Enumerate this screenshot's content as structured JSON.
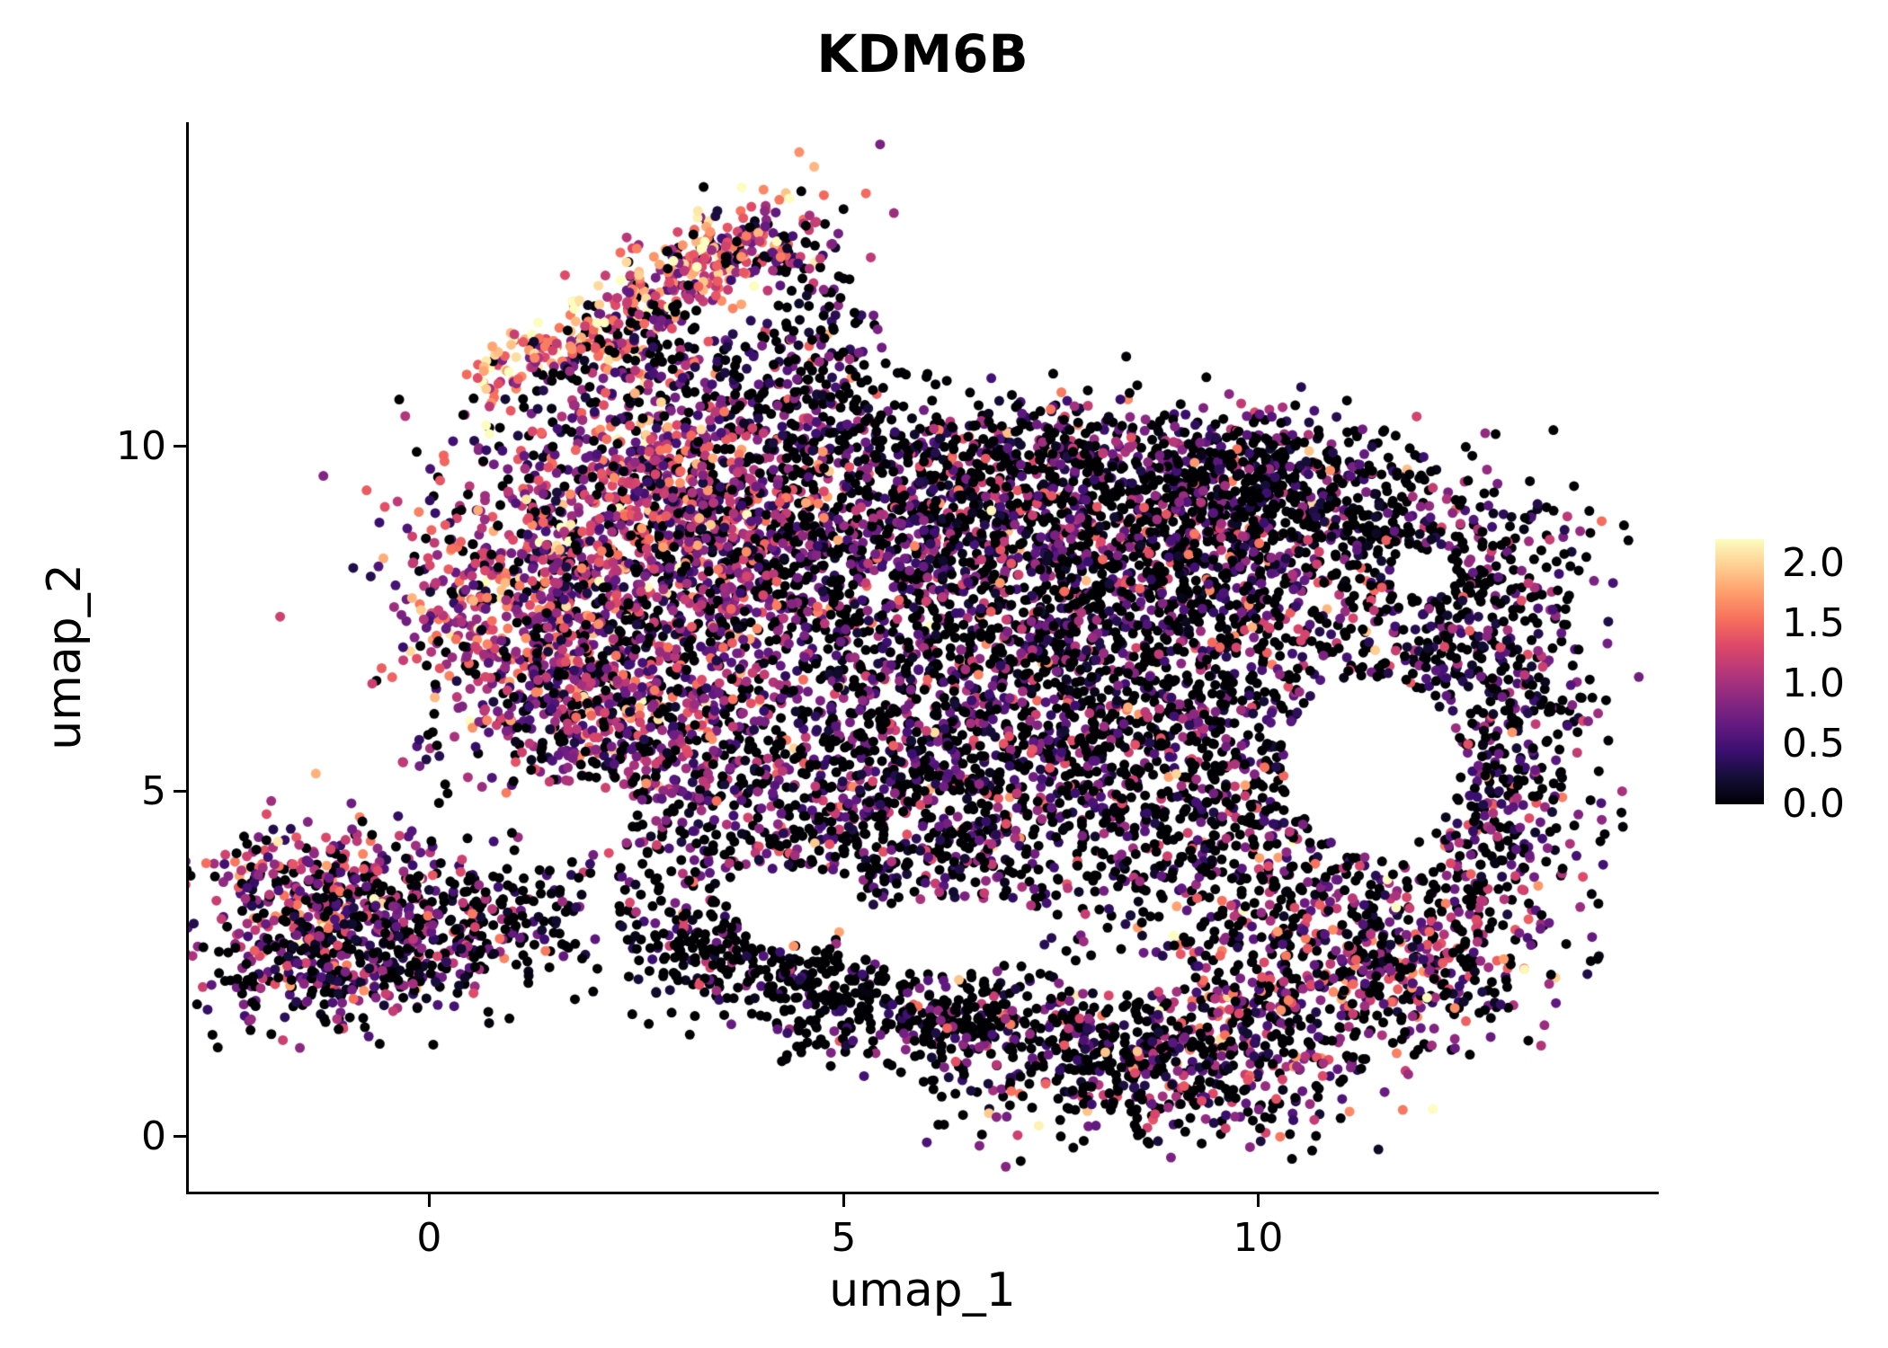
{
  "chart_data": {
    "type": "scatter",
    "title": "KDM6B",
    "xlabel": "umap_1",
    "ylabel": "umap_2",
    "xlim": [
      -2.9,
      14.8
    ],
    "ylim": [
      -0.8,
      14.7
    ],
    "grid": false,
    "background": "#FFFFFF",
    "x_ticks": [
      0,
      5,
      10
    ],
    "x_tick_labels": [
      "0",
      "5",
      "10"
    ],
    "y_ticks": [
      0,
      5,
      10
    ],
    "y_tick_labels": [
      "0",
      "5",
      "10"
    ],
    "legend_position": "right",
    "colorbar": {
      "vmin": 0.0,
      "vmax": 2.2,
      "ticks": [
        0.0,
        0.5,
        1.0,
        1.5,
        2.0
      ],
      "tick_labels": [
        "0.0",
        "0.5",
        "1.0",
        "1.5",
        "2.0"
      ]
    },
    "colormap": [
      "#000004",
      "#140E36",
      "#3B0F70",
      "#641A80",
      "#8C2981",
      "#B73779",
      "#DE4968",
      "#F7705C",
      "#FE9F6D",
      "#FECF92",
      "#FCFDBF"
    ],
    "point_radius": 5.5,
    "seed": 20240613,
    "clusters": [
      {
        "name": "top-arm-main",
        "cx": 3.0,
        "cy": 12.5,
        "sx": 0.85,
        "sy": 0.32,
        "rot": 38,
        "n": 260,
        "p0": 0.1,
        "mu": 1.35,
        "sd": 0.55
      },
      {
        "name": "top-arm-right",
        "cx": 4.15,
        "cy": 12.85,
        "sx": 0.45,
        "sy": 0.22,
        "rot": 15,
        "n": 110,
        "p0": 0.3,
        "mu": 1.1,
        "sd": 0.6
      },
      {
        "name": "top-arm-spur",
        "cx": 1.35,
        "cy": 11.35,
        "sx": 0.5,
        "sy": 0.18,
        "rot": 28,
        "n": 90,
        "p0": 0.06,
        "mu": 1.7,
        "sd": 0.45
      },
      {
        "name": "top-arm-mid",
        "cx": 2.4,
        "cy": 11.4,
        "sx": 0.6,
        "sy": 0.4,
        "rot": 30,
        "n": 140,
        "p0": 0.35,
        "mu": 0.9,
        "sd": 0.6
      },
      {
        "name": "arm-transition",
        "cx": 3.6,
        "cy": 10.9,
        "sx": 0.7,
        "sy": 0.5,
        "rot": 0,
        "n": 130,
        "p0": 0.45,
        "mu": 0.7,
        "sd": 0.5
      },
      {
        "name": "arm-right-sparse",
        "cx": 4.6,
        "cy": 11.9,
        "sx": 0.45,
        "sy": 0.45,
        "rot": 0,
        "n": 70,
        "p0": 0.5,
        "mu": 0.6,
        "sd": 0.5
      },
      {
        "name": "upper-left-1",
        "cx": 2.5,
        "cy": 9.4,
        "sx": 1.05,
        "sy": 0.75,
        "rot": -10,
        "n": 620,
        "p0": 0.18,
        "mu": 0.95,
        "sd": 0.5
      },
      {
        "name": "upper-left-2",
        "cx": 1.15,
        "cy": 7.6,
        "sx": 0.75,
        "sy": 0.95,
        "rot": 0,
        "n": 520,
        "p0": 0.15,
        "mu": 1.05,
        "sd": 0.55
      },
      {
        "name": "upper-left-3",
        "cx": 2.7,
        "cy": 7.2,
        "sx": 1.0,
        "sy": 0.85,
        "rot": 0,
        "n": 480,
        "p0": 0.22,
        "mu": 0.9,
        "sd": 0.5
      },
      {
        "name": "upper-left-4",
        "cx": 2.1,
        "cy": 5.9,
        "sx": 0.95,
        "sy": 0.65,
        "rot": 0,
        "n": 360,
        "p0": 0.28,
        "mu": 0.85,
        "sd": 0.5
      },
      {
        "name": "upper-left-5",
        "cx": 3.9,
        "cy": 8.6,
        "sx": 0.8,
        "sy": 0.9,
        "rot": 0,
        "n": 350,
        "p0": 0.35,
        "mu": 0.8,
        "sd": 0.5
      },
      {
        "name": "center-1",
        "cx": 5.4,
        "cy": 9.0,
        "sx": 1.2,
        "sy": 0.8,
        "rot": 0,
        "n": 520,
        "p0": 0.45,
        "mu": 0.7,
        "sd": 0.5
      },
      {
        "name": "center-2",
        "cx": 7.4,
        "cy": 9.2,
        "sx": 1.4,
        "sy": 0.7,
        "rot": 0,
        "n": 520,
        "p0": 0.5,
        "mu": 0.7,
        "sd": 0.5
      },
      {
        "name": "center-3",
        "cx": 5.9,
        "cy": 6.6,
        "sx": 1.5,
        "sy": 1.15,
        "rot": 0,
        "n": 780,
        "p0": 0.5,
        "mu": 0.7,
        "sd": 0.5
      },
      {
        "name": "center-4",
        "cx": 8.2,
        "cy": 7.2,
        "sx": 1.4,
        "sy": 1.2,
        "rot": 0,
        "n": 800,
        "p0": 0.55,
        "mu": 0.65,
        "sd": 0.5
      },
      {
        "name": "center-5",
        "cx": 7.0,
        "cy": 4.8,
        "sx": 1.7,
        "sy": 0.9,
        "rot": 0,
        "n": 620,
        "p0": 0.55,
        "mu": 0.65,
        "sd": 0.5
      },
      {
        "name": "center-6",
        "cx": 4.9,
        "cy": 4.3,
        "sx": 1.1,
        "sy": 0.8,
        "rot": 0,
        "n": 330,
        "p0": 0.5,
        "mu": 0.7,
        "sd": 0.5
      },
      {
        "name": "center-7",
        "cx": 9.6,
        "cy": 5.3,
        "sx": 1.1,
        "sy": 1.2,
        "rot": 0,
        "n": 460,
        "p0": 0.6,
        "mu": 0.6,
        "sd": 0.5
      },
      {
        "name": "center-8",
        "cx": 9.3,
        "cy": 8.6,
        "sx": 1.0,
        "sy": 0.8,
        "rot": 0,
        "n": 380,
        "p0": 0.55,
        "mu": 0.65,
        "sd": 0.5
      },
      {
        "name": "right-lobe-top",
        "cx": 11.1,
        "cy": 8.8,
        "sx": 1.3,
        "sy": 0.65,
        "rot": -8,
        "n": 420,
        "p0": 0.55,
        "mu": 0.6,
        "sd": 0.5
      },
      {
        "name": "right-lobe-edge",
        "cx": 12.4,
        "cy": 7.2,
        "sx": 0.75,
        "sy": 1.1,
        "rot": -20,
        "n": 380,
        "p0": 0.5,
        "mu": 0.7,
        "sd": 0.5
      },
      {
        "name": "right-lobe-lower",
        "cx": 12.8,
        "cy": 4.8,
        "sx": 0.6,
        "sy": 1.0,
        "rot": 10,
        "n": 260,
        "p0": 0.5,
        "mu": 0.7,
        "sd": 0.5
      },
      {
        "name": "right-lobe-bottom",
        "cx": 10.7,
        "cy": 3.2,
        "sx": 1.1,
        "sy": 0.8,
        "rot": 0,
        "n": 380,
        "p0": 0.45,
        "mu": 0.85,
        "sd": 0.55
      },
      {
        "name": "right-bottom-pink",
        "cx": 12.0,
        "cy": 2.4,
        "sx": 0.9,
        "sy": 0.6,
        "rot": 20,
        "n": 260,
        "p0": 0.4,
        "mu": 0.95,
        "sd": 0.55
      },
      {
        "name": "right-top-edge",
        "cx": 10.3,
        "cy": 9.6,
        "sx": 0.9,
        "sy": 0.4,
        "rot": -5,
        "n": 170,
        "p0": 0.55,
        "mu": 0.6,
        "sd": 0.5
      },
      {
        "name": "far-right-edge",
        "cx": 13.3,
        "cy": 6.3,
        "sx": 0.35,
        "sy": 0.9,
        "rot": 0,
        "n": 80,
        "p0": 0.5,
        "mu": 0.7,
        "sd": 0.5
      },
      {
        "name": "bottom-band-1",
        "cx": 4.4,
        "cy": 2.3,
        "sx": 1.1,
        "sy": 0.4,
        "rot": -12,
        "n": 240,
        "p0": 0.75,
        "mu": 0.5,
        "sd": 0.45
      },
      {
        "name": "bottom-band-2",
        "cx": 6.4,
        "cy": 1.7,
        "sx": 1.3,
        "sy": 0.45,
        "rot": -8,
        "n": 320,
        "p0": 0.7,
        "mu": 0.55,
        "sd": 0.5
      },
      {
        "name": "bottom-band-3",
        "cx": 8.4,
        "cy": 1.0,
        "sx": 1.2,
        "sy": 0.55,
        "rot": -5,
        "n": 420,
        "p0": 0.55,
        "mu": 0.8,
        "sd": 0.55
      },
      {
        "name": "bottom-band-4",
        "cx": 9.9,
        "cy": 1.6,
        "sx": 0.9,
        "sy": 0.7,
        "rot": 15,
        "n": 320,
        "p0": 0.5,
        "mu": 0.9,
        "sd": 0.55
      },
      {
        "name": "bottom-band-5",
        "cx": 3.3,
        "cy": 3.0,
        "sx": 0.7,
        "sy": 0.5,
        "rot": -20,
        "n": 120,
        "p0": 0.7,
        "mu": 0.5,
        "sd": 0.45
      },
      {
        "name": "bottom-left-1",
        "cx": -1.3,
        "cy": 3.6,
        "sx": 0.75,
        "sy": 0.5,
        "rot": 0,
        "n": 320,
        "p0": 0.25,
        "mu": 0.95,
        "sd": 0.55
      },
      {
        "name": "bottom-left-2",
        "cx": -1.25,
        "cy": 2.5,
        "sx": 0.75,
        "sy": 0.45,
        "rot": 0,
        "n": 300,
        "p0": 0.38,
        "mu": 0.75,
        "sd": 0.5
      },
      {
        "name": "bottom-left-3",
        "cx": 0.05,
        "cy": 2.9,
        "sx": 0.6,
        "sy": 0.6,
        "rot": 0,
        "n": 210,
        "p0": 0.45,
        "mu": 0.7,
        "sd": 0.5
      },
      {
        "name": "bottom-left-tail",
        "cx": 1.1,
        "cy": 3.3,
        "sx": 0.55,
        "sy": 0.45,
        "rot": 0,
        "n": 90,
        "p0": 0.6,
        "mu": 0.55,
        "sd": 0.5
      },
      {
        "name": "mid-left-sparse",
        "cx": 2.9,
        "cy": 4.8,
        "sx": 0.8,
        "sy": 0.6,
        "rot": 0,
        "n": 130,
        "p0": 0.5,
        "mu": 0.7,
        "sd": 0.5
      },
      {
        "name": "top-edge-1",
        "cx": 6.4,
        "cy": 10.1,
        "sx": 1.4,
        "sy": 0.35,
        "rot": 0,
        "n": 150,
        "p0": 0.55,
        "mu": 0.6,
        "sd": 0.5
      },
      {
        "name": "top-edge-2",
        "cx": 8.9,
        "cy": 10.0,
        "sx": 1.1,
        "sy": 0.35,
        "rot": 0,
        "n": 140,
        "p0": 0.5,
        "mu": 0.65,
        "sd": 0.5
      },
      {
        "name": "top-edge-3",
        "cx": 4.8,
        "cy": 10.6,
        "sx": 0.5,
        "sy": 0.35,
        "rot": 20,
        "n": 60,
        "p0": 0.55,
        "mu": 0.6,
        "sd": 0.5
      }
    ],
    "holes": [
      {
        "cx": 11.4,
        "cy": 5.4,
        "rx": 1.05,
        "ry": 1.25
      },
      {
        "cx": 6.2,
        "cy": 2.9,
        "rx": 1.15,
        "ry": 0.55
      },
      {
        "cx": 4.4,
        "cy": 3.4,
        "rx": 0.75,
        "ry": 0.5
      },
      {
        "cx": 1.7,
        "cy": 4.6,
        "rx": 0.7,
        "ry": 0.55
      },
      {
        "cx": 8.4,
        "cy": 2.35,
        "rx": 0.8,
        "ry": 0.28
      },
      {
        "cx": 12.0,
        "cy": 8.15,
        "rx": 0.4,
        "ry": 0.35
      }
    ]
  }
}
